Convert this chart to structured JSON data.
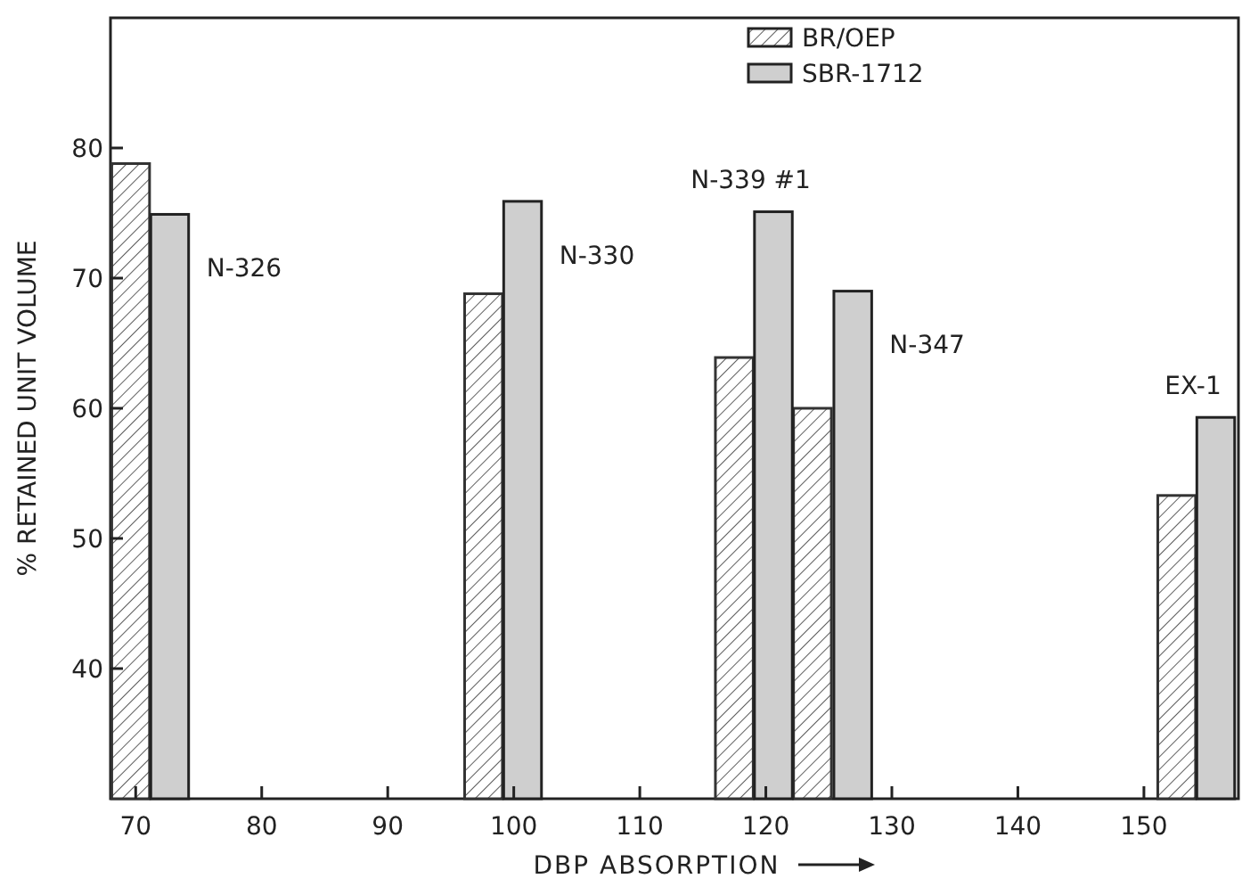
{
  "chart_data": {
    "type": "bar",
    "xlabel": "DBP ABSORPTION",
    "ylabel": "% RETAINED UNIT VOLUME",
    "xlim": [
      68,
      157.5
    ],
    "xticks": [
      70,
      80,
      90,
      100,
      110,
      120,
      130,
      140,
      150
    ],
    "ylim": [
      30,
      90
    ],
    "yticks": [
      40,
      50,
      60,
      70,
      80
    ],
    "series": [
      {
        "name": "BR/OEP",
        "color": "#333333",
        "x": [
          69.6,
          97.6,
          117.5,
          123.7,
          152.6
        ],
        "values": [
          78.8,
          68.8,
          63.9,
          60.0,
          53.3
        ]
      },
      {
        "name": "SBR-1712",
        "color": "#cfcfcf",
        "x": [
          72.7,
          100.7,
          120.6,
          126.9,
          155.7
        ],
        "values": [
          74.9,
          75.9,
          75.1,
          69.0,
          59.3
        ]
      }
    ],
    "annotations": [
      "N-326",
      "N-330",
      "N-339 #1",
      "N-347",
      "EX-1"
    ],
    "legend": "top right",
    "grid": false
  }
}
